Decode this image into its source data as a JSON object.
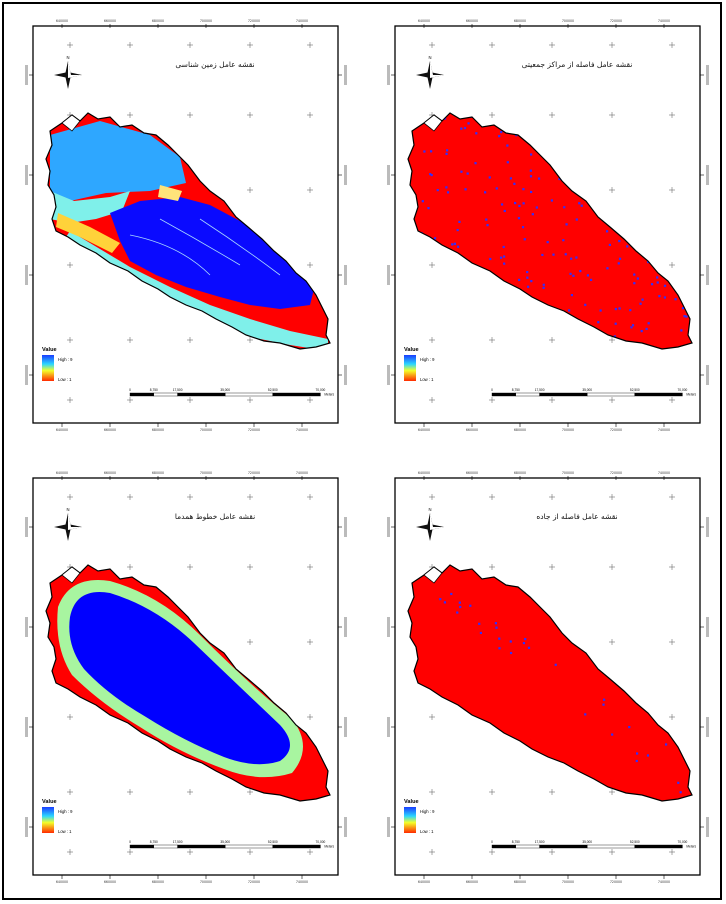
{
  "panels": [
    {
      "id": "geology",
      "title": "نقشه عامل زمین شناسی",
      "x_ticks": [
        "640000",
        "660000",
        "680000",
        "700000",
        "720000",
        "740000"
      ],
      "legend": {
        "title": "Value",
        "high": "High : 9",
        "low": "Low : 1"
      },
      "scale": {
        "labels": [
          "0",
          "8,750",
          "17,500",
          "35,000",
          "52,500",
          "70,000"
        ],
        "unit": "Meters"
      },
      "colors": {
        "fill_base": "#ff0000",
        "dominant": "#0a0aff",
        "secondary": "#2ea7ff",
        "tertiary": "#7ff0ea"
      }
    },
    {
      "id": "population-centers",
      "title": "نقشه عامل فاصله از مراکز جمعیتی",
      "x_ticks": [
        "640000",
        "660000",
        "680000",
        "700000",
        "720000",
        "740000"
      ],
      "legend": {
        "title": "Value",
        "high": "High : 9",
        "low": "Low : 1"
      },
      "scale": {
        "labels": [
          "0",
          "8,750",
          "17,500",
          "35,000",
          "52,500",
          "70,000"
        ],
        "unit": "Meters"
      },
      "colors": {
        "fill_base": "#ff0000",
        "dots": "#3030ff"
      }
    },
    {
      "id": "isoline",
      "title": "نقشه عامل خطوط همدما",
      "x_ticks": [
        "640000",
        "660000",
        "680000",
        "700000",
        "720000",
        "740000"
      ],
      "legend": {
        "title": "Value",
        "high": "High : 9",
        "low": "Low : 1"
      },
      "scale": {
        "labels": [
          "0",
          "8,750",
          "17,500",
          "35,000",
          "52,500",
          "70,000"
        ],
        "unit": "Meters"
      },
      "colors": {
        "fill_base": "#ff0000",
        "middle": "#a8f5a0",
        "core": "#0000ff"
      }
    },
    {
      "id": "road-distance",
      "title": "نقشه عامل فاصله از جاده",
      "x_ticks": [
        "640000",
        "660000",
        "680000",
        "700000",
        "720000",
        "740000"
      ],
      "legend": {
        "title": "Value",
        "high": "High : 9",
        "low": "Low : 1"
      },
      "scale": {
        "labels": [
          "0",
          "8,750",
          "17,500",
          "35,000",
          "52,500",
          "70,000"
        ],
        "unit": "Meters"
      },
      "colors": {
        "fill_base": "#ff0000",
        "dots": "#3030ff"
      }
    }
  ]
}
